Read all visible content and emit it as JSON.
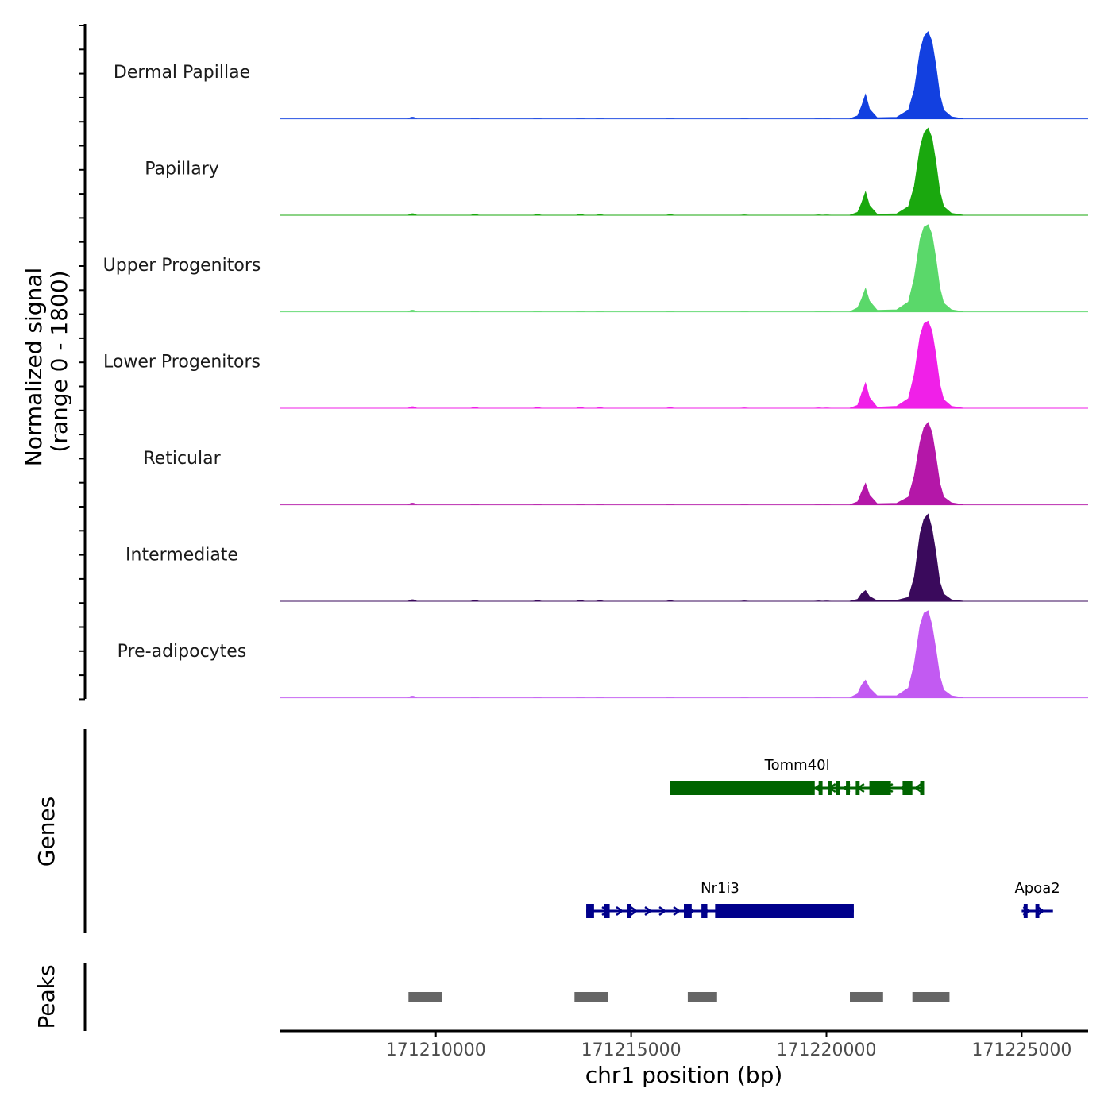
{
  "chart_data": {
    "type": "area",
    "title": "",
    "ylabel": "Normalized signal",
    "ylabel_range": "(range 0 - 1800)",
    "ylim": [
      0,
      1800
    ],
    "xlabel": "chr1 position (bp)",
    "xlim": [
      171206000,
      171226700
    ],
    "xticks": [
      "171210000",
      "171215000",
      "171220000",
      "171225000"
    ],
    "tracks": [
      {
        "name": "Dermal Papillae",
        "color": "#1240e0"
      },
      {
        "name": "Papillary",
        "color": "#1aa80e"
      },
      {
        "name": "Upper Progenitors",
        "color": "#5ad86a"
      },
      {
        "name": "Lower Progenitors",
        "color": "#f020e8"
      },
      {
        "name": "Reticular",
        "color": "#b417a8"
      },
      {
        "name": "Intermediate",
        "color": "#3a0a5c"
      },
      {
        "name": "Pre-adipocytes",
        "color": "#c25af2"
      }
    ],
    "signal": {
      "x": [
        171220600,
        171220800,
        171220900,
        171221000,
        171221100,
        171221300,
        171221800,
        171222100,
        171222250,
        171222400,
        171222500,
        171222600,
        171222700,
        171222800,
        171222900,
        171223000,
        171223200,
        171223500
      ],
      "peaks_by_track": [
        [
          0,
          60,
          260,
          500,
          200,
          20,
          30,
          180,
          600,
          1400,
          1700,
          1800,
          1600,
          1100,
          500,
          180,
          40,
          0
        ],
        [
          0,
          60,
          250,
          480,
          200,
          20,
          30,
          180,
          600,
          1400,
          1700,
          1800,
          1600,
          1100,
          500,
          180,
          40,
          0
        ],
        [
          0,
          80,
          260,
          480,
          220,
          30,
          40,
          200,
          700,
          1500,
          1750,
          1800,
          1600,
          1100,
          500,
          180,
          40,
          0
        ],
        [
          0,
          60,
          300,
          520,
          220,
          20,
          40,
          200,
          700,
          1500,
          1750,
          1800,
          1600,
          1100,
          500,
          180,
          40,
          0
        ],
        [
          0,
          60,
          260,
          440,
          200,
          20,
          30,
          160,
          600,
          1300,
          1600,
          1700,
          1500,
          1000,
          450,
          160,
          40,
          0
        ],
        [
          0,
          40,
          160,
          220,
          100,
          10,
          20,
          80,
          500,
          1400,
          1700,
          1800,
          1500,
          1000,
          400,
          150,
          30,
          0
        ],
        [
          0,
          80,
          260,
          360,
          200,
          40,
          40,
          200,
          700,
          1500,
          1750,
          1800,
          1500,
          1000,
          450,
          160,
          40,
          0
        ]
      ]
    },
    "genes_title": "Genes",
    "genes": [
      {
        "name": "Tomm40l",
        "start": 171216000,
        "end": 171222500,
        "strand": "-",
        "color": "#006400",
        "exons": [
          [
            171216000,
            171219700
          ],
          [
            171219800,
            171219900
          ],
          [
            171220050,
            171220100
          ],
          [
            171220250,
            171220350
          ],
          [
            171220500,
            171220600
          ],
          [
            171220750,
            171220850
          ],
          [
            171221100,
            171221650
          ],
          [
            171221950,
            171222200
          ],
          [
            171222400,
            171222500
          ]
        ]
      },
      {
        "name": "Nr1i3",
        "start": 171213850,
        "end": 171220700,
        "strand": "+",
        "color": "#00008b",
        "exons": [
          [
            171213850,
            171214050
          ],
          [
            171214300,
            171214450
          ],
          [
            171214900,
            171215000
          ],
          [
            171216350,
            171216550
          ],
          [
            171216800,
            171216950
          ],
          [
            171217150,
            171220700
          ]
        ]
      },
      {
        "name": "Apoa2",
        "start": 171225000,
        "end": 171225800,
        "strand": "+",
        "color": "#00008b",
        "exons": [
          [
            171225050,
            171225150
          ],
          [
            171225350,
            171225450
          ]
        ]
      }
    ],
    "peaks_title": "Peaks",
    "peaks": [
      [
        171209300,
        171210150
      ],
      [
        171213550,
        171214400
      ],
      [
        171216450,
        171217200
      ],
      [
        171220600,
        171221450
      ],
      [
        171222200,
        171223150
      ]
    ]
  }
}
